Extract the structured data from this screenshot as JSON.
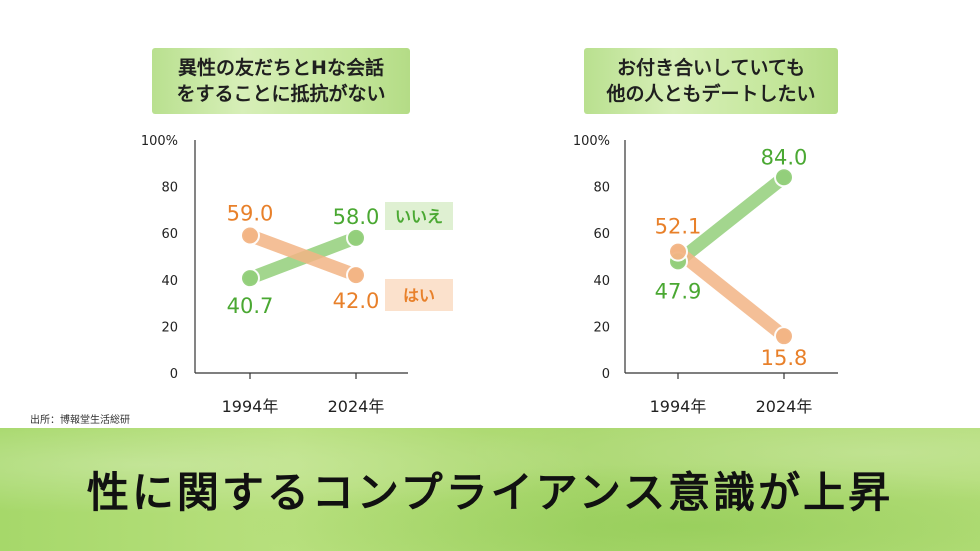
{
  "colors": {
    "green": "#4aa832",
    "orange": "#e8802a",
    "green_line": "#93cf7b",
    "orange_line": "#f3b585"
  },
  "headline": "性に関するコンプライアンス意識が上昇",
  "source": "出所：博報堂生活総研",
  "chart_data": [
    {
      "type": "line",
      "title_lines": [
        "異性の友だちとHな会話",
        "をすることに抵抗がない"
      ],
      "categories": [
        "1994年",
        "2024年"
      ],
      "yticks": [
        "0",
        "20",
        "40",
        "60",
        "80",
        "100%"
      ],
      "ylim": [
        0,
        100
      ],
      "series": [
        {
          "name": "いいえ",
          "color": "green",
          "values": [
            40.7,
            58.0
          ],
          "labels": [
            "40.7",
            "58.0"
          ]
        },
        {
          "name": "はい",
          "color": "orange",
          "values": [
            59.0,
            42.0
          ],
          "labels": [
            "59.0",
            "42.0"
          ]
        }
      ]
    },
    {
      "type": "line",
      "title_lines": [
        "お付き合いしていても",
        "他の人ともデートしたい"
      ],
      "categories": [
        "1994年",
        "2024年"
      ],
      "yticks": [
        "0",
        "20",
        "40",
        "60",
        "80",
        "100%"
      ],
      "ylim": [
        0,
        100
      ],
      "series": [
        {
          "name": "",
          "color": "green",
          "values": [
            47.9,
            84.0
          ],
          "labels": [
            "47.9",
            "84.0"
          ]
        },
        {
          "name": "",
          "color": "orange",
          "values": [
            52.1,
            15.8
          ],
          "labels": [
            "52.1",
            "15.8"
          ]
        }
      ]
    }
  ]
}
